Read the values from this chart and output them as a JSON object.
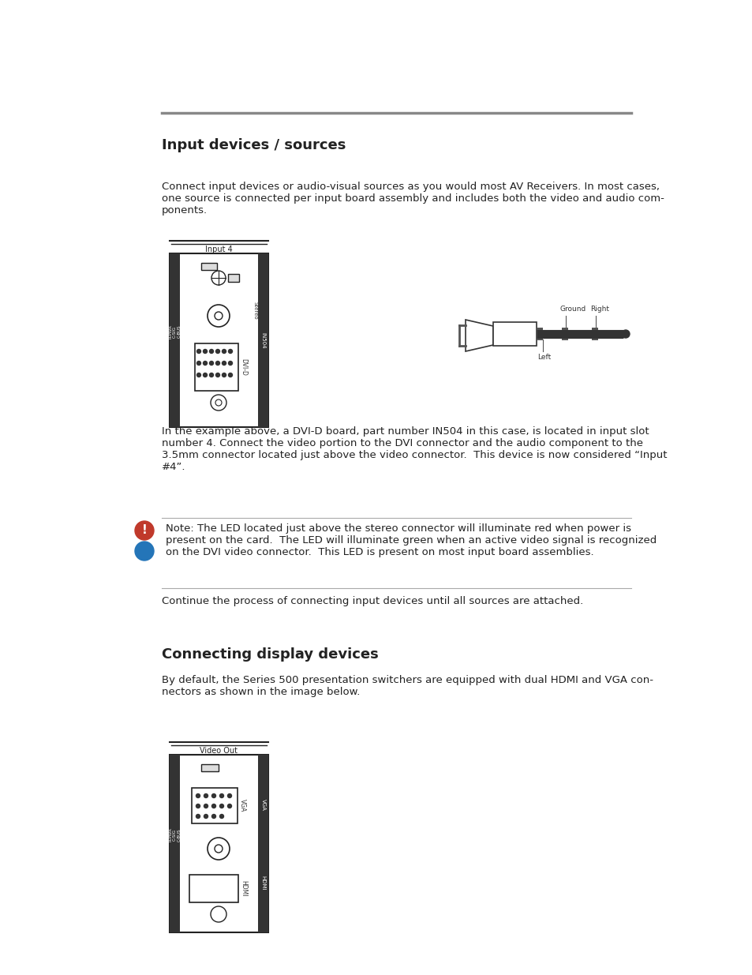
{
  "bg_color": "#ffffff",
  "header_line_color": "#888888",
  "text_color": "#222222",
  "note_red_color": "#c0392b",
  "note_blue_color": "#2475b8",
  "section1_heading": "Input devices / sources",
  "section2_heading": "Connecting display devices",
  "para1": "Connect input devices or audio-visual sources as you would most AV Receivers. In most cases,\none source is connected per input board assembly and includes both the video and audio com-\nponents.",
  "para2": "In the example above, a DVI-D board, part number IN504 in this case, is located in input slot\nnumber 4. Connect the video portion to the DVI connector and the audio component to the\n3.5mm connector located just above the video connector.  This device is now considered “Input\n#4”.",
  "note_text": "Note: The LED located just above the stereo connector will illuminate red when power is\npresent on the card.  The LED will illuminate green when an active video signal is recognized\non the DVI video connector.  This LED is present on most input board assemblies.",
  "para3": "Continue the process of connecting input devices until all sources are attached.",
  "para4": "By default, the Series 500 presentation switchers are equipped with dual HDMI and VGA con-\nnectors as shown in the image below."
}
